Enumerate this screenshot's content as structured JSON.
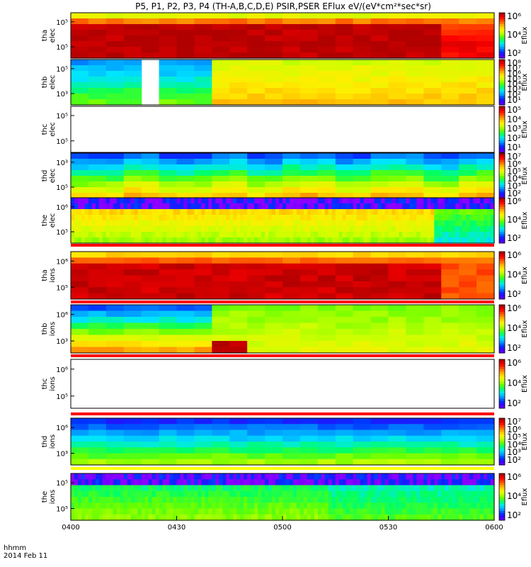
{
  "title": "P5, P1, P2, P3, P4 (TH-A,B,C,D,E) PSIR,PSER EFlux eV/(eV*cm²*sec*sr)",
  "footer": {
    "line1": "hhmm",
    "line2": "2014 Feb 11"
  },
  "colorbar_label": "Eflux",
  "x_ticks": [
    "0400",
    "0430",
    "0500",
    "0530",
    "0600"
  ],
  "chart_data": {
    "type": "heatmap",
    "xlim": [
      "04:00",
      "06:00"
    ],
    "x_tick_labels": [
      "0400",
      "0430",
      "0500",
      "0530",
      "0600"
    ],
    "x_axis_label": "hhmm",
    "date_label": "2014 Feb 11",
    "y_scale": "log",
    "colormap": "rainbow (purple → blue → cyan → green → yellow → red)",
    "panels": [
      {
        "probe": "tha",
        "species": "elec",
        "ylabel": [
          "tha",
          "elec"
        ],
        "y_tick_labels": [
          "10⁵",
          "10⁵"
        ],
        "cbar_tick_labels": [
          "10⁶",
          "10⁴",
          "10²"
        ]
      },
      {
        "probe": "thb",
        "species": "elec",
        "ylabel": [
          "thb",
          "elec"
        ],
        "y_tick_labels": [
          "10⁵",
          "10³"
        ],
        "cbar_tick_labels": [
          "10⁸",
          "10⁷",
          "10⁶",
          "10⁵",
          "10⁴",
          "10³",
          "10²",
          "10¹"
        ]
      },
      {
        "probe": "thc",
        "species": "elec",
        "ylabel": [
          "thc",
          "elec"
        ],
        "y_tick_labels": [
          "10⁵",
          "10⁵"
        ],
        "cbar_tick_labels": [
          "10⁵",
          "10⁴",
          "10³",
          "10²",
          "10¹"
        ]
      },
      {
        "probe": "thd",
        "species": "elec",
        "ylabel": [
          "thd",
          "elec"
        ],
        "y_tick_labels": [
          "10³",
          "10⁵"
        ],
        "cbar_tick_labels": [
          "10⁷",
          "10⁶",
          "10⁵",
          "10⁴",
          "10³",
          "10²"
        ]
      },
      {
        "probe": "the",
        "species": "elec",
        "ylabel": [
          "the",
          "elec"
        ],
        "y_tick_labels": [
          "10⁶",
          "10⁵"
        ],
        "cbar_tick_labels": [
          "10⁶",
          "10⁴",
          "10²"
        ]
      },
      {
        "probe": "tha",
        "species": "ions",
        "ylabel": [
          "tha",
          "ions"
        ],
        "y_tick_labels": [
          "10⁶",
          "10⁵"
        ],
        "cbar_tick_labels": [
          "10⁶",
          "10⁴",
          "10²"
        ]
      },
      {
        "probe": "thb",
        "species": "ions",
        "ylabel": [
          "thb",
          "ions"
        ],
        "y_tick_labels": [
          "10⁶",
          "10³"
        ],
        "cbar_tick_labels": [
          "10⁶",
          "10⁴",
          "10²"
        ]
      },
      {
        "probe": "thc",
        "species": "ions",
        "ylabel": [
          "thc",
          "ions"
        ],
        "y_tick_labels": [
          "10⁶",
          "10⁵"
        ],
        "cbar_tick_labels": [
          "10⁶",
          "10⁴",
          "10²"
        ]
      },
      {
        "probe": "thd",
        "species": "ions",
        "ylabel": [
          "thd",
          "ions"
        ],
        "y_tick_labels": [
          "10⁶",
          "10³"
        ],
        "cbar_tick_labels": [
          "10⁷",
          "10⁶",
          "10⁵",
          "10⁴",
          "10³",
          "10²"
        ]
      },
      {
        "probe": "the",
        "species": "ions",
        "ylabel": [
          "the",
          "ions"
        ],
        "y_tick_labels": [
          "10⁵",
          "10⁵"
        ],
        "cbar_tick_labels": [
          "10⁶",
          "10⁴",
          "10²"
        ]
      }
    ]
  }
}
